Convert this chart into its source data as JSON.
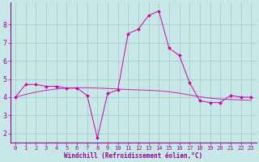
{
  "title": "",
  "xlabel": "Windchill (Refroidissement éolien,°C)",
  "x": [
    0,
    1,
    2,
    3,
    4,
    5,
    6,
    7,
    8,
    9,
    10,
    11,
    12,
    13,
    14,
    15,
    16,
    17,
    18,
    19,
    20,
    21,
    22,
    23
  ],
  "y_actual": [
    4.0,
    4.7,
    4.7,
    4.6,
    4.6,
    4.5,
    4.5,
    4.1,
    1.75,
    4.2,
    4.4,
    7.5,
    7.75,
    8.5,
    8.75,
    6.7,
    6.3,
    4.8,
    3.8,
    3.7,
    3.7,
    4.1,
    4.0,
    4.0
  ],
  "y_trend": [
    4.0,
    4.15,
    4.28,
    4.38,
    4.45,
    4.5,
    4.52,
    4.52,
    4.5,
    4.48,
    4.45,
    4.42,
    4.4,
    4.38,
    4.35,
    4.3,
    4.22,
    4.12,
    4.02,
    3.95,
    3.9,
    3.87,
    3.85,
    3.82
  ],
  "line_color": "#CC00AA",
  "marker": "D",
  "bg_color": "#C8E8E8",
  "grid_color": "#A0C8C8",
  "axis_color": "#990099",
  "tick_color": "#990099",
  "label_color": "#990099",
  "ylim": [
    1.5,
    9.2
  ],
  "yticks": [
    2,
    3,
    4,
    5,
    6,
    7,
    8
  ],
  "xlim": [
    -0.5,
    23.5
  ],
  "xticks": [
    0,
    1,
    2,
    3,
    4,
    5,
    6,
    7,
    8,
    9,
    10,
    11,
    12,
    13,
    14,
    15,
    16,
    17,
    18,
    19,
    20,
    21,
    22,
    23
  ]
}
